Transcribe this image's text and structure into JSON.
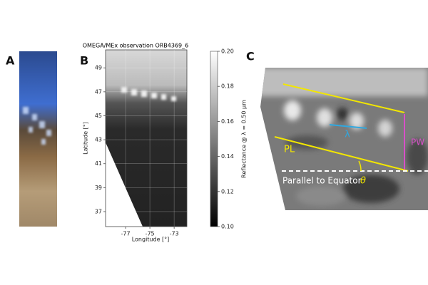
{
  "panels": {
    "a": {
      "label": "A"
    },
    "b": {
      "label": "B",
      "title": "OMEGA/MEx observation ORB4369_6",
      "xlabel": "Longitude [°]",
      "ylabel": "Latitude [°]",
      "xlim": [
        -78.65,
        -71.95
      ],
      "xticks": [
        -77,
        -75,
        -73
      ],
      "ylim": [
        35.75,
        50.5
      ],
      "yticks": [
        37,
        39,
        41,
        43,
        45,
        47,
        49
      ],
      "colorbar": {
        "label": "Reflectance @ λ = 0.50 µm",
        "lim": [
          0.1,
          0.2
        ],
        "ticks": [
          {
            "value": 0.1,
            "label": "0.10"
          },
          0.12,
          0.14,
          0.16,
          0.18,
          {
            "value": 0.2,
            "label": "0.20"
          }
        ]
      }
    },
    "c": {
      "label": "C",
      "lambda": "λ",
      "pw": "PW",
      "pl": "PL",
      "equator": "Parallel to Equator",
      "theta": "θ"
    }
  }
}
